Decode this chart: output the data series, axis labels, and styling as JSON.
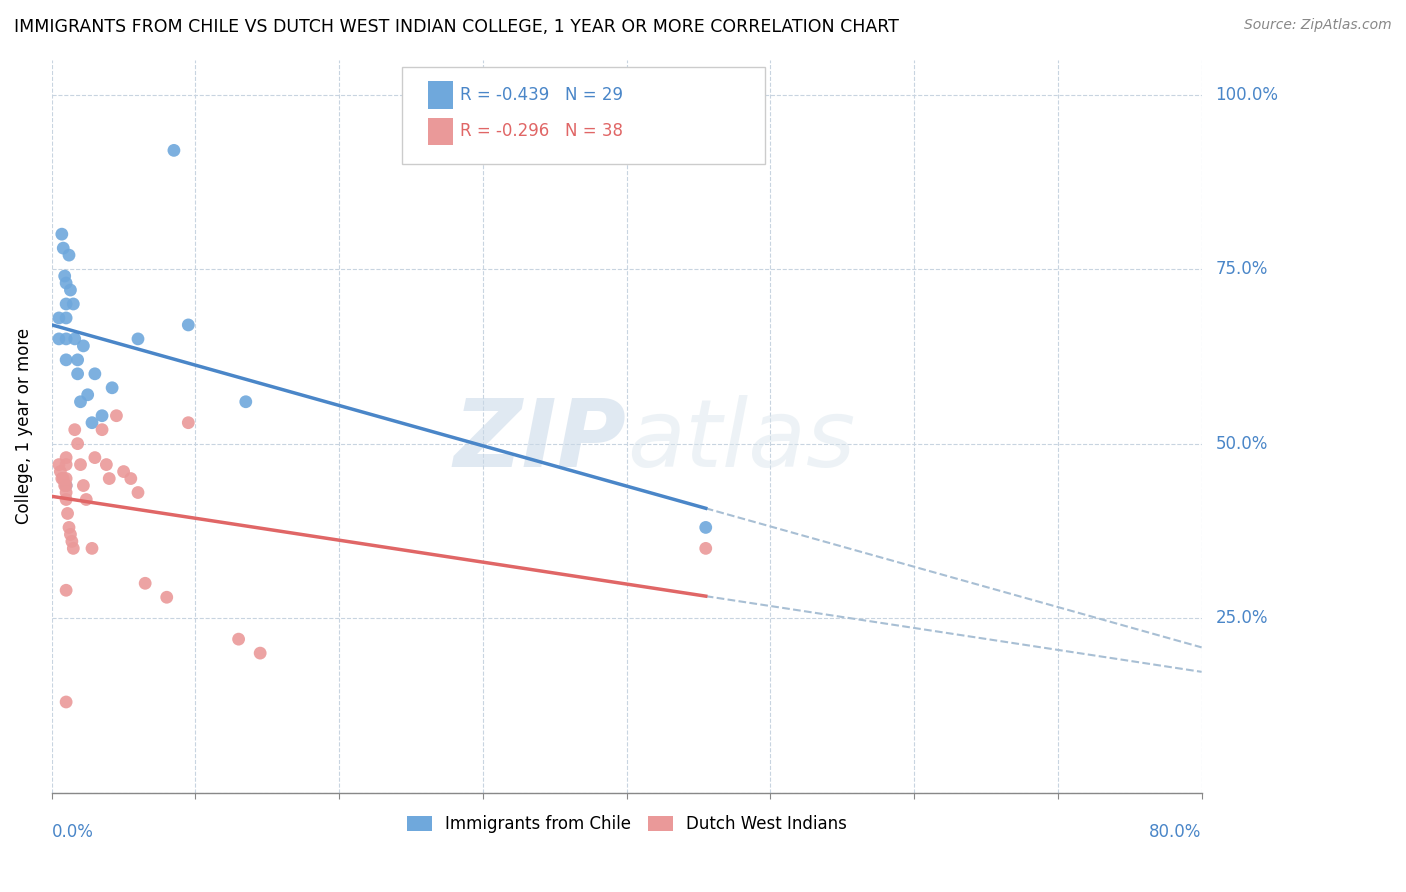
{
  "title": "IMMIGRANTS FROM CHILE VS DUTCH WEST INDIAN COLLEGE, 1 YEAR OR MORE CORRELATION CHART",
  "source": "Source: ZipAtlas.com",
  "ylabel": "College, 1 year or more",
  "xlim": [
    0.0,
    0.8
  ],
  "ylim": [
    0.0,
    1.05
  ],
  "chile_x": [
    0.005,
    0.005,
    0.007,
    0.008,
    0.009,
    0.01,
    0.01,
    0.01,
    0.01,
    0.01,
    0.012,
    0.013,
    0.015,
    0.016,
    0.018,
    0.018,
    0.02,
    0.022,
    0.025,
    0.028,
    0.03,
    0.035,
    0.042,
    0.06,
    0.085,
    0.095,
    0.135,
    0.455,
    0.01
  ],
  "chile_y": [
    0.68,
    0.65,
    0.8,
    0.78,
    0.74,
    0.73,
    0.7,
    0.68,
    0.65,
    0.62,
    0.77,
    0.72,
    0.7,
    0.65,
    0.62,
    0.6,
    0.56,
    0.64,
    0.57,
    0.53,
    0.6,
    0.54,
    0.58,
    0.65,
    0.92,
    0.67,
    0.56,
    0.38,
    0.44
  ],
  "dutch_x": [
    0.005,
    0.006,
    0.007,
    0.008,
    0.009,
    0.01,
    0.01,
    0.01,
    0.01,
    0.01,
    0.011,
    0.012,
    0.013,
    0.014,
    0.015,
    0.016,
    0.018,
    0.02,
    0.022,
    0.024,
    0.028,
    0.03,
    0.035,
    0.038,
    0.04,
    0.045,
    0.05,
    0.055,
    0.06,
    0.065,
    0.08,
    0.095,
    0.13,
    0.145,
    0.455,
    0.01,
    0.01,
    0.01
  ],
  "dutch_y": [
    0.47,
    0.46,
    0.45,
    0.45,
    0.44,
    0.48,
    0.47,
    0.45,
    0.43,
    0.42,
    0.4,
    0.38,
    0.37,
    0.36,
    0.35,
    0.52,
    0.5,
    0.47,
    0.44,
    0.42,
    0.35,
    0.48,
    0.52,
    0.47,
    0.45,
    0.54,
    0.46,
    0.45,
    0.43,
    0.3,
    0.28,
    0.53,
    0.22,
    0.2,
    0.35,
    0.44,
    0.29,
    0.13
  ],
  "chile_color": "#6fa8dc",
  "dutch_color": "#ea9999",
  "chile_line_color": "#4a86c8",
  "dutch_line_color": "#e06666",
  "dashed_line_color": "#a8bfd4",
  "chile_R": -0.439,
  "chile_N": 29,
  "dutch_R": -0.296,
  "dutch_N": 38,
  "legend_label_chile": "Immigrants from Chile",
  "legend_label_dutch": "Dutch West Indians",
  "watermark_zip": "ZIP",
  "watermark_atlas": "atlas"
}
